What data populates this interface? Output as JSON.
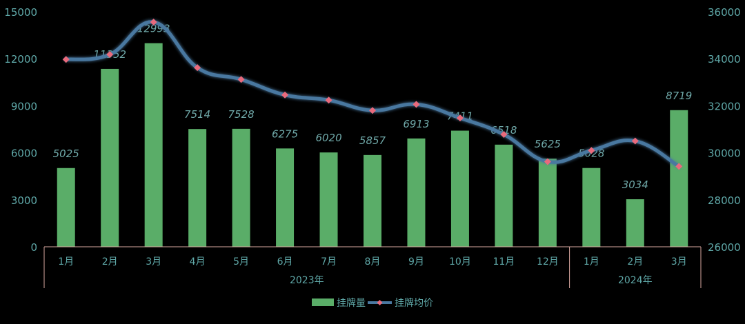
{
  "chart_data": {
    "type": "bar",
    "title": "",
    "categories": [
      "1月",
      "2月",
      "3月",
      "4月",
      "5月",
      "6月",
      "7月",
      "8月",
      "9月",
      "10月",
      "11月",
      "12月",
      "1月",
      "2月",
      "3月"
    ],
    "groups": [
      {
        "label": "2023年",
        "count": 12
      },
      {
        "label": "2024年",
        "count": 3
      }
    ],
    "series": [
      {
        "name": "挂牌量",
        "type": "bar",
        "axis": "left",
        "values": [
          5025,
          11352,
          12993,
          7514,
          7528,
          6275,
          6020,
          5857,
          6913,
          7411,
          6518,
          5625,
          5028,
          3034,
          8719
        ],
        "data_labels": [
          "5025",
          "11352",
          "12993",
          "7514",
          "7528",
          "6275",
          "6020",
          "5857",
          "6913",
          "7411",
          "6518",
          "5625",
          "5028",
          "3034",
          "8719"
        ],
        "color": "#5aad68"
      },
      {
        "name": "挂牌均价",
        "type": "line",
        "axis": "right",
        "smooth": true,
        "values": [
          33970,
          34180,
          35560,
          33620,
          33120,
          32460,
          32240,
          31800,
          32060,
          31480,
          30780,
          29620,
          30100,
          30500,
          29420
        ],
        "color": "#4a78a0",
        "marker_color": "#e96a7c"
      }
    ],
    "y_left": {
      "min": 0,
      "max": 15000,
      "ticks": [
        "0",
        "3000",
        "6000",
        "9000",
        "12000",
        "15000"
      ]
    },
    "y_right": {
      "min": 26000,
      "max": 36000,
      "ticks": [
        "26000",
        "28000",
        "30000",
        "32000",
        "34000",
        "36000"
      ]
    },
    "grid": false,
    "legend_position": "bottom",
    "colors": {
      "axis_text": "#5fa8a8",
      "label_text": "#6fa8a8",
      "axis_line": "#d8a7a0"
    }
  }
}
